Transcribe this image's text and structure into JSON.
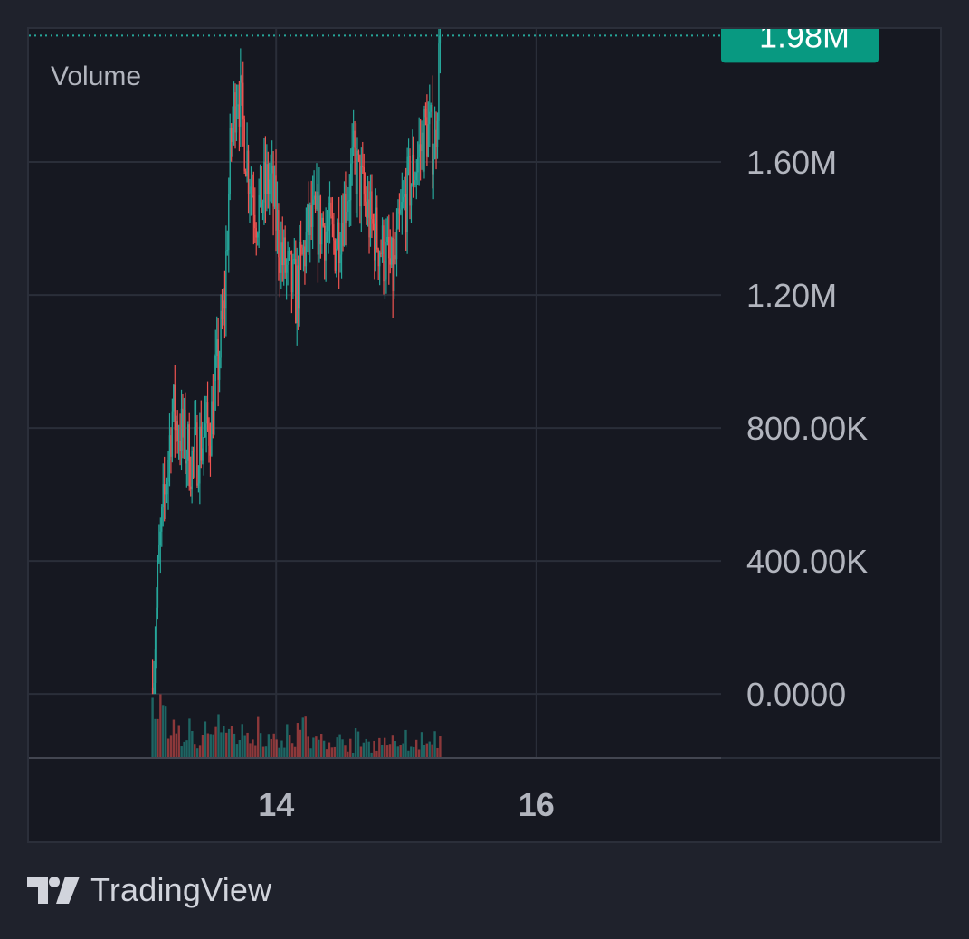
{
  "brand": {
    "name": "TradingView",
    "logo_icon": "tradingview-logo-icon"
  },
  "colors": {
    "up": "#26a69a",
    "down": "#ef5350",
    "price_badge": "#089981",
    "grid": "#2a2e39",
    "axis_text": "#b2b5be"
  },
  "chart_data": {
    "type": "candlestick",
    "title": "",
    "pane_label": "Volume",
    "xlabel": "",
    "ylabel": "",
    "ylim": [
      -190000,
      2000000
    ],
    "y_ticks": [
      0,
      400000,
      800000,
      1200000,
      1600000
    ],
    "y_tick_labels": [
      "0.0000",
      "400.00K",
      "800.00K",
      "1.20M",
      "1.60M"
    ],
    "x_ticks": [
      14,
      16
    ],
    "x_tick_labels": [
      "14",
      "16"
    ],
    "xlim": [
      12.1,
      17.42
    ],
    "grid": true,
    "last_value": 1980000,
    "last_value_label": "1.98M",
    "price_keypoints": {
      "x": [
        13.05,
        13.1,
        13.2,
        13.35,
        13.5,
        13.6,
        13.65,
        13.7,
        13.78,
        13.85,
        13.95,
        14.05,
        14.15,
        14.25,
        14.35,
        14.45,
        14.6,
        14.72,
        14.8,
        14.9,
        14.95,
        15.0,
        15.08,
        15.15,
        15.22,
        15.26
      ],
      "y": [
        20000,
        400000,
        850000,
        700000,
        820000,
        1150000,
        1650000,
        1850000,
        1600000,
        1450000,
        1550000,
        1300000,
        1200000,
        1400000,
        1420000,
        1350000,
        1600000,
        1420000,
        1350000,
        1250000,
        1400000,
        1500000,
        1600000,
        1700000,
        1650000,
        1980000
      ]
    },
    "volume_series": {
      "x_start": 13.05,
      "x_end": 15.26,
      "max_volume": 70000
    }
  }
}
